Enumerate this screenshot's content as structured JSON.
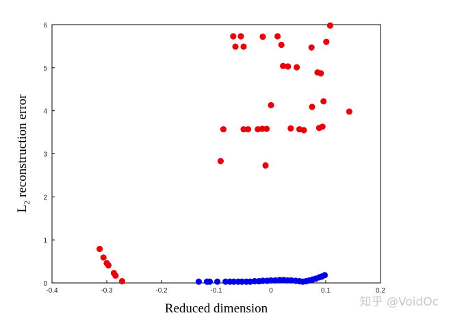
{
  "chart_data": {
    "type": "scatter",
    "xlabel": "Reduced dimension",
    "ylabel_main": "L",
    "ylabel_sub": "2",
    "ylabel_rest": " reconstruction error",
    "xlim": [
      -0.4,
      0.2
    ],
    "ylim": [
      0,
      6
    ],
    "xticks": [
      -0.4,
      -0.3,
      -0.2,
      -0.1,
      0,
      0.1,
      0.2
    ],
    "xtick_labels": [
      "-0.4",
      "-0.3",
      "-0.2",
      "-0.1",
      "0",
      "0.1",
      "0.2"
    ],
    "yticks": [
      0,
      1,
      2,
      3,
      4,
      5,
      6
    ],
    "ytick_labels": [
      "0",
      "1",
      "2",
      "3",
      "4",
      "5",
      "6"
    ],
    "grid": false,
    "series": [
      {
        "color": "#e8000b",
        "points": [
          [
            -0.069,
            5.73
          ],
          [
            -0.055,
            5.73
          ],
          [
            -0.015,
            5.72
          ],
          [
            0.012,
            5.73
          ],
          [
            -0.065,
            5.49
          ],
          [
            -0.05,
            5.49
          ],
          [
            0.019,
            5.53
          ],
          [
            0.074,
            5.47
          ],
          [
            0.101,
            5.6
          ],
          [
            0.108,
            5.98
          ],
          [
            0.022,
            5.04
          ],
          [
            0.031,
            5.03
          ],
          [
            0.047,
            5.01
          ],
          [
            0.085,
            4.89
          ],
          [
            0.091,
            4.87
          ],
          [
            0.0,
            4.13
          ],
          [
            0.075,
            4.09
          ],
          [
            0.096,
            4.22
          ],
          [
            0.143,
            3.98
          ],
          [
            -0.087,
            3.57
          ],
          [
            -0.05,
            3.57
          ],
          [
            -0.042,
            3.57
          ],
          [
            -0.024,
            3.57
          ],
          [
            -0.016,
            3.58
          ],
          [
            -0.008,
            3.58
          ],
          [
            0.036,
            3.59
          ],
          [
            0.052,
            3.57
          ],
          [
            0.06,
            3.55
          ],
          [
            0.088,
            3.6
          ],
          [
            0.094,
            3.63
          ],
          [
            -0.092,
            2.83
          ],
          [
            -0.01,
            2.73
          ],
          [
            -0.313,
            0.79
          ],
          [
            -0.306,
            0.59
          ],
          [
            -0.3,
            0.46
          ],
          [
            -0.297,
            0.41
          ],
          [
            -0.287,
            0.23
          ],
          [
            -0.284,
            0.17
          ],
          [
            -0.272,
            0.04
          ]
        ]
      },
      {
        "color": "#0000e8",
        "points": [
          [
            -0.132,
            0.03
          ],
          [
            -0.117,
            0.03
          ],
          [
            -0.112,
            0.03
          ],
          [
            -0.098,
            0.03
          ],
          [
            -0.083,
            0.03
          ],
          [
            -0.075,
            0.03
          ],
          [
            -0.068,
            0.03
          ],
          [
            -0.06,
            0.03
          ],
          [
            -0.053,
            0.03
          ],
          [
            -0.045,
            0.03
          ],
          [
            -0.038,
            0.03
          ],
          [
            -0.03,
            0.04
          ],
          [
            -0.022,
            0.04
          ],
          [
            -0.015,
            0.05
          ],
          [
            -0.007,
            0.05
          ],
          [
            0.0,
            0.06
          ],
          [
            0.008,
            0.06
          ],
          [
            0.016,
            0.07
          ],
          [
            0.023,
            0.07
          ],
          [
            0.03,
            0.06
          ],
          [
            0.037,
            0.06
          ],
          [
            0.045,
            0.05
          ],
          [
            0.052,
            0.04
          ],
          [
            0.058,
            0.03
          ],
          [
            0.064,
            0.04
          ],
          [
            0.07,
            0.06
          ],
          [
            0.076,
            0.08
          ],
          [
            0.082,
            0.1
          ],
          [
            0.088,
            0.13
          ],
          [
            0.093,
            0.15
          ],
          [
            0.098,
            0.18
          ]
        ]
      }
    ]
  },
  "watermark": "知乎 @VoidOc"
}
